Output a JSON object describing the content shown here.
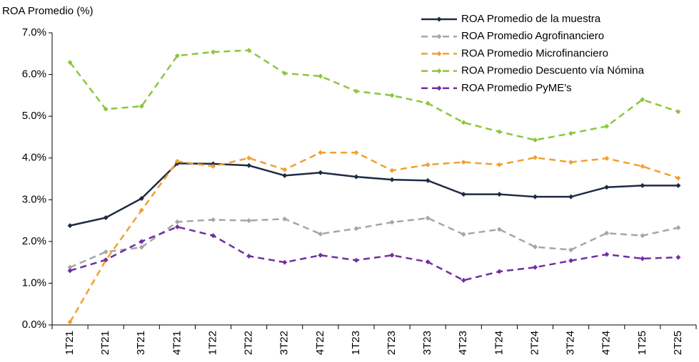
{
  "chart_data": {
    "type": "line",
    "title": "ROA Promedio (%)",
    "categories": [
      "1T21",
      "2T21",
      "3T21",
      "4T21",
      "1T22",
      "2T22",
      "3T22",
      "4T22",
      "1T23",
      "2T23",
      "3T23",
      "4T23",
      "1T24",
      "2T24",
      "3T24",
      "4T24",
      "1T25",
      "2T25"
    ],
    "series": [
      {
        "name": "ROA Promedio de la muestra",
        "color": "#1f2a44",
        "line_style": "solid",
        "values": [
          2.38,
          2.57,
          3.03,
          3.87,
          3.86,
          3.82,
          3.58,
          3.65,
          3.55,
          3.48,
          3.46,
          3.13,
          3.13,
          3.07,
          3.07,
          3.3,
          3.34,
          3.34
        ]
      },
      {
        "name": "ROA Promedio Agrofinanciero",
        "color": "#a6a6a6",
        "line_style": "dashed",
        "values": [
          1.38,
          1.75,
          1.86,
          2.47,
          2.52,
          2.5,
          2.54,
          2.18,
          2.31,
          2.46,
          2.56,
          2.17,
          2.29,
          1.87,
          1.8,
          2.2,
          2.14,
          2.33
        ]
      },
      {
        "name": "ROA Promedio Microfinanciero",
        "color": "#f0a030",
        "line_style": "dashed",
        "values": [
          0.07,
          1.55,
          2.75,
          3.92,
          3.8,
          4.0,
          3.72,
          4.13,
          4.13,
          3.7,
          3.84,
          3.9,
          3.84,
          4.01,
          3.9,
          3.99,
          3.8,
          3.52
        ]
      },
      {
        "name": "ROA Promedio Descuento vía Nómina",
        "color": "#8cc63e",
        "line_style": "dashed",
        "values": [
          6.29,
          5.17,
          5.24,
          6.45,
          6.54,
          6.58,
          6.03,
          5.96,
          5.6,
          5.5,
          5.31,
          4.85,
          4.63,
          4.43,
          4.59,
          4.76,
          5.4,
          5.11
        ]
      },
      {
        "name": "ROA Promedio PyME's",
        "color": "#7030a0",
        "line_style": "dashed",
        "values": [
          1.3,
          1.56,
          2.0,
          2.35,
          2.14,
          1.65,
          1.5,
          1.67,
          1.55,
          1.67,
          1.51,
          1.07,
          1.28,
          1.38,
          1.54,
          1.69,
          1.59,
          1.62
        ]
      }
    ],
    "ylim": [
      0,
      7
    ],
    "yticks": [
      {
        "value": 0,
        "label": "0.0%"
      },
      {
        "value": 1,
        "label": "1.0%"
      },
      {
        "value": 2,
        "label": "2.0%"
      },
      {
        "value": 3,
        "label": "3.0%"
      },
      {
        "value": 4,
        "label": "4.0%"
      },
      {
        "value": 5,
        "label": "5.0%"
      },
      {
        "value": 6,
        "label": "6.0%"
      },
      {
        "value": 7,
        "label": "7.0%"
      }
    ],
    "grid": false,
    "legend": "top-right"
  }
}
